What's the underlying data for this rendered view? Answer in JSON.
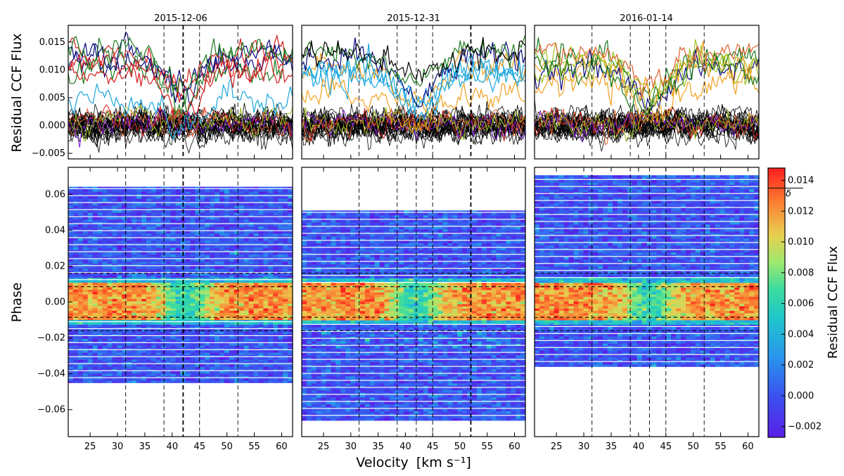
{
  "chart_data": {
    "type": "heatmap",
    "panels": [
      {
        "title": "2015-12-06",
        "phase_range": [
          -0.045,
          0.064
        ],
        "dashed_velocities": [
          31.5,
          38.5,
          42,
          45,
          52
        ],
        "bold_line_velocity": 42
      },
      {
        "title": "2015-12-31",
        "phase_range": [
          -0.066,
          0.05
        ],
        "dashed_velocities": [
          31.5,
          38.5,
          42,
          45,
          52
        ],
        "bold_line_velocity": 52
      },
      {
        "title": "2016-01-14",
        "phase_range": [
          -0.036,
          0.07
        ],
        "dashed_velocities": [
          31.5,
          38.5,
          42,
          45,
          52
        ],
        "bold_line_velocity": null
      }
    ],
    "top_row": {
      "ylabel": "Residual CCF Flux",
      "ylim": [
        -0.006,
        0.018
      ],
      "yticks": [
        "−0.005",
        "0.000",
        "0.005",
        "0.010",
        "0.015"
      ]
    },
    "bottom_row": {
      "ylabel": "Phase",
      "ylim": [
        -0.075,
        0.075
      ],
      "yticks": [
        "−0.06",
        "−0.04",
        "−0.02",
        "0.00",
        "0.02",
        "0.04",
        "0.06"
      ],
      "transit_band_phase": [
        -0.0105,
        0.0105
      ],
      "transit_dashed_phases": [
        -0.016,
        -0.0085,
        0.0085,
        0.016
      ]
    },
    "xlabel_text": "Velocity",
    "xlabel_unit": "[km s⁻¹]",
    "xlim": [
      21,
      62
    ],
    "xticks": [
      "25",
      "30",
      "35",
      "40",
      "45",
      "50",
      "55",
      "60"
    ],
    "in_transit_level": 0.012,
    "out_of_transit_level": 0.0,
    "line_depth": 0.006,
    "line_center": 42,
    "colorbar": {
      "label": "Residual CCF Flux",
      "range": [
        -0.0027,
        0.0148
      ],
      "ticks": [
        "−0.002",
        "0.000",
        "0.002",
        "0.004",
        "0.006",
        "0.008",
        "0.010",
        "0.012",
        "0.014"
      ],
      "marker_label": "δ",
      "marker_value": 0.0135
    },
    "series_colors": [
      "#000000",
      "#0a0a80",
      "#d42020",
      "#1b7a1b",
      "#1aa6dd",
      "#f0a020",
      "#a0c020",
      "#e06030",
      "#7a1ad0"
    ]
  }
}
